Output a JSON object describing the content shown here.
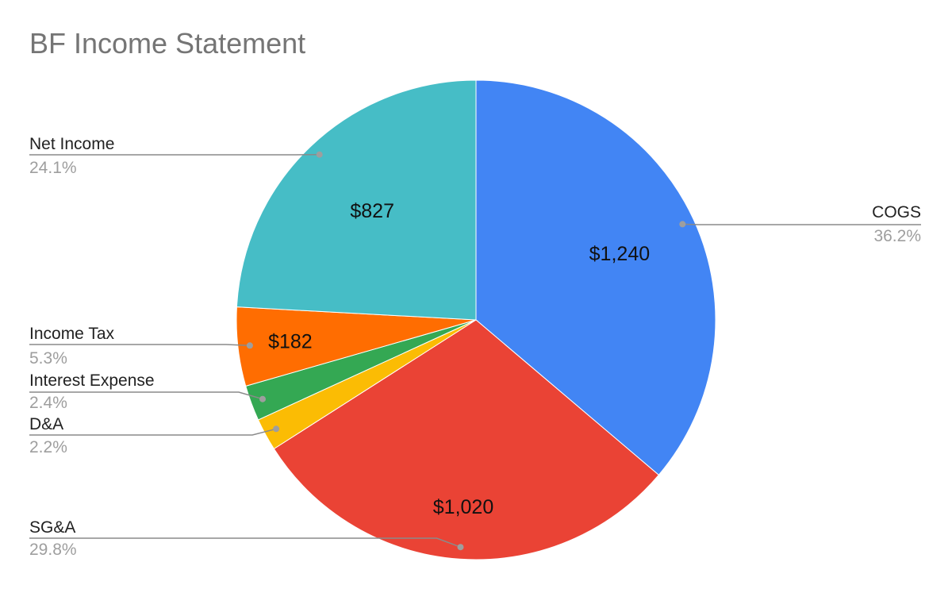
{
  "chart_data": {
    "type": "pie",
    "title": "BF Income Statement",
    "slices": [
      {
        "label": "COGS",
        "value": 1240,
        "value_label": "$1,240",
        "percent_label": "36.2%",
        "color": "#4285F4"
      },
      {
        "label": "SG&A",
        "value": 1020,
        "value_label": "$1,020",
        "percent_label": "29.8%",
        "color": "#EA4335"
      },
      {
        "label": "D&A",
        "value": 75,
        "value_label": "",
        "percent_label": "2.2%",
        "color": "#FBBC04"
      },
      {
        "label": "Interest Expense",
        "value": 82,
        "value_label": "",
        "percent_label": "2.4%",
        "color": "#34A853"
      },
      {
        "label": "Income Tax",
        "value": 182,
        "value_label": "$182",
        "percent_label": "5.3%",
        "color": "#FF6D01"
      },
      {
        "label": "Net Income",
        "value": 827,
        "value_label": "$827",
        "percent_label": "24.1%",
        "color": "#46BDC6"
      }
    ],
    "start_angle_deg": 0,
    "direction": "clockwise"
  }
}
